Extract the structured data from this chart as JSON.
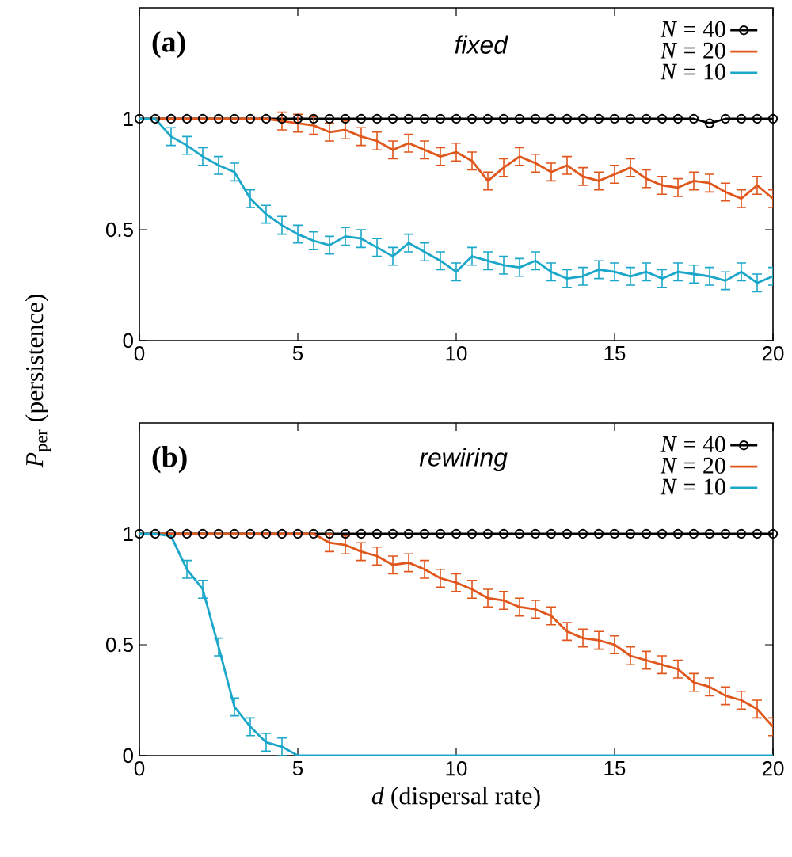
{
  "chart_data": [
    {
      "type": "line",
      "title": "(a)",
      "annotations": [
        "fixed"
      ],
      "ylabel": "*P*$_{per}$ (persistence)",
      "x": [
        0,
        0.5,
        1,
        1.5,
        2,
        2.5,
        3,
        3.5,
        4,
        4.5,
        5,
        5.5,
        6,
        6.5,
        7,
        7.5,
        8,
        8.5,
        9,
        9.5,
        10,
        10.5,
        11,
        11.5,
        12,
        12.5,
        13,
        13.5,
        14,
        14.5,
        15,
        15.5,
        16,
        16.5,
        17,
        17.5,
        18,
        18.5,
        19,
        19.5,
        20
      ],
      "xlim": [
        0,
        20
      ],
      "xticks": [
        0,
        5,
        10,
        15,
        20
      ],
      "ylim": [
        0,
        1.5
      ],
      "yticks": [
        0,
        0.5,
        1
      ],
      "legend": "top right",
      "series": [
        {
          "name": "*N* = 40",
          "color": "#000000",
          "marker": "circle",
          "values": [
            1,
            1,
            1,
            1,
            1,
            1,
            1,
            1,
            1,
            1,
            1,
            1,
            1,
            1,
            1,
            1,
            1,
            1,
            1,
            1,
            1,
            1,
            1,
            1,
            1,
            1,
            1,
            1,
            1,
            1,
            1,
            1,
            1,
            1,
            1,
            1,
            0.98,
            1,
            1,
            1,
            1
          ]
        },
        {
          "name": "*N* = 20",
          "color": "#e0561b",
          "marker": "none",
          "values": [
            1,
            1,
            1,
            1,
            1,
            1,
            1,
            1,
            1,
            0.99,
            0.98,
            0.97,
            0.94,
            0.95,
            0.92,
            0.9,
            0.86,
            0.89,
            0.86,
            0.83,
            0.85,
            0.81,
            0.72,
            0.78,
            0.83,
            0.8,
            0.76,
            0.79,
            0.74,
            0.72,
            0.75,
            0.78,
            0.73,
            0.7,
            0.69,
            0.72,
            0.71,
            0.67,
            0.64,
            0.7,
            0.64
          ],
          "errors": [
            null,
            null,
            null,
            null,
            null,
            null,
            null,
            null,
            null,
            0.04,
            0.04,
            0.04,
            0.04,
            0.04,
            0.04,
            0.04,
            0.04,
            0.04,
            0.04,
            0.04,
            0.04,
            0.04,
            0.04,
            0.04,
            0.04,
            0.04,
            0.04,
            0.04,
            0.04,
            0.04,
            0.04,
            0.04,
            0.04,
            0.04,
            0.04,
            0.04,
            0.04,
            0.04,
            0.04,
            0.04,
            0.04
          ]
        },
        {
          "name": "*N* = 10",
          "color": "#1aa7c9",
          "marker": "none",
          "values": [
            1,
            1,
            0.92,
            0.88,
            0.83,
            0.79,
            0.76,
            0.64,
            0.57,
            0.52,
            0.48,
            0.45,
            0.43,
            0.47,
            0.46,
            0.42,
            0.38,
            0.44,
            0.4,
            0.36,
            0.31,
            0.38,
            0.36,
            0.34,
            0.33,
            0.36,
            0.31,
            0.28,
            0.29,
            0.32,
            0.31,
            0.29,
            0.31,
            0.28,
            0.31,
            0.3,
            0.29,
            0.27,
            0.31,
            0.26,
            0.29
          ],
          "errors": [
            null,
            null,
            0.04,
            0.04,
            0.04,
            0.04,
            0.04,
            0.04,
            0.04,
            0.04,
            0.04,
            0.04,
            0.04,
            0.04,
            0.04,
            0.04,
            0.04,
            0.04,
            0.04,
            0.04,
            0.04,
            0.04,
            0.04,
            0.04,
            0.04,
            0.04,
            0.04,
            0.04,
            0.04,
            0.04,
            0.04,
            0.04,
            0.04,
            0.04,
            0.04,
            0.04,
            0.04,
            0.04,
            0.04,
            0.04,
            0.04
          ]
        }
      ]
    },
    {
      "type": "line",
      "title": "(b)",
      "annotations": [
        "rewiring"
      ],
      "xlabel": "*d* (dispersal rate)",
      "x": [
        0,
        0.5,
        1,
        1.5,
        2,
        2.5,
        3,
        3.5,
        4,
        4.5,
        5,
        5.5,
        6,
        6.5,
        7,
        7.5,
        8,
        8.5,
        9,
        9.5,
        10,
        10.5,
        11,
        11.5,
        12,
        12.5,
        13,
        13.5,
        14,
        14.5,
        15,
        15.5,
        16,
        16.5,
        17,
        17.5,
        18,
        18.5,
        19,
        19.5,
        20
      ],
      "xlim": [
        0,
        20
      ],
      "xticks": [
        0,
        5,
        10,
        15,
        20
      ],
      "ylim": [
        0,
        1.5
      ],
      "yticks": [
        0,
        0.5,
        1
      ],
      "legend": "top right",
      "series": [
        {
          "name": "*N* = 40",
          "color": "#000000",
          "marker": "circle",
          "values": [
            1,
            1,
            1,
            1,
            1,
            1,
            1,
            1,
            1,
            1,
            1,
            1,
            1,
            1,
            1,
            1,
            1,
            1,
            1,
            1,
            1,
            1,
            1,
            1,
            1,
            1,
            1,
            1,
            1,
            1,
            1,
            1,
            1,
            1,
            1,
            1,
            1,
            1,
            1,
            1,
            1
          ]
        },
        {
          "name": "*N* = 20",
          "color": "#e0561b",
          "marker": "none",
          "values": [
            1,
            1,
            1,
            1,
            1,
            1,
            1,
            1,
            1,
            1,
            1,
            1,
            0.96,
            0.95,
            0.92,
            0.9,
            0.86,
            0.87,
            0.84,
            0.8,
            0.78,
            0.75,
            0.71,
            0.7,
            0.67,
            0.66,
            0.63,
            0.56,
            0.53,
            0.52,
            0.5,
            0.45,
            0.43,
            0.41,
            0.39,
            0.33,
            0.31,
            0.27,
            0.25,
            0.21,
            0.13
          ],
          "errors": [
            null,
            null,
            null,
            null,
            null,
            null,
            null,
            null,
            null,
            null,
            null,
            null,
            0.04,
            0.04,
            0.04,
            0.04,
            0.04,
            0.04,
            0.04,
            0.04,
            0.04,
            0.04,
            0.04,
            0.04,
            0.04,
            0.04,
            0.04,
            0.04,
            0.04,
            0.04,
            0.04,
            0.04,
            0.04,
            0.04,
            0.04,
            0.04,
            0.04,
            0.04,
            0.04,
            0.04,
            0.04
          ]
        },
        {
          "name": "*N* = 10",
          "color": "#1aa7c9",
          "marker": "none",
          "values": [
            1,
            1,
            0.99,
            0.84,
            0.75,
            0.49,
            0.22,
            0.13,
            0.06,
            0.04,
            0,
            0,
            0,
            0,
            0,
            0,
            0,
            0,
            0,
            0,
            0,
            0,
            0,
            0,
            0,
            0,
            0,
            0,
            0,
            0,
            0,
            0,
            0,
            0,
            0,
            0,
            0,
            0,
            0,
            0,
            0
          ],
          "errors": [
            null,
            null,
            null,
            0.04,
            0.04,
            0.04,
            0.04,
            0.04,
            0.04,
            0.04,
            null,
            null,
            null,
            null,
            null,
            null,
            null,
            null,
            null,
            null,
            null,
            null,
            null,
            null,
            null,
            null,
            null,
            null,
            null,
            null,
            null,
            null,
            null,
            null,
            null,
            null,
            null,
            null,
            null,
            null,
            null
          ]
        }
      ]
    }
  ]
}
